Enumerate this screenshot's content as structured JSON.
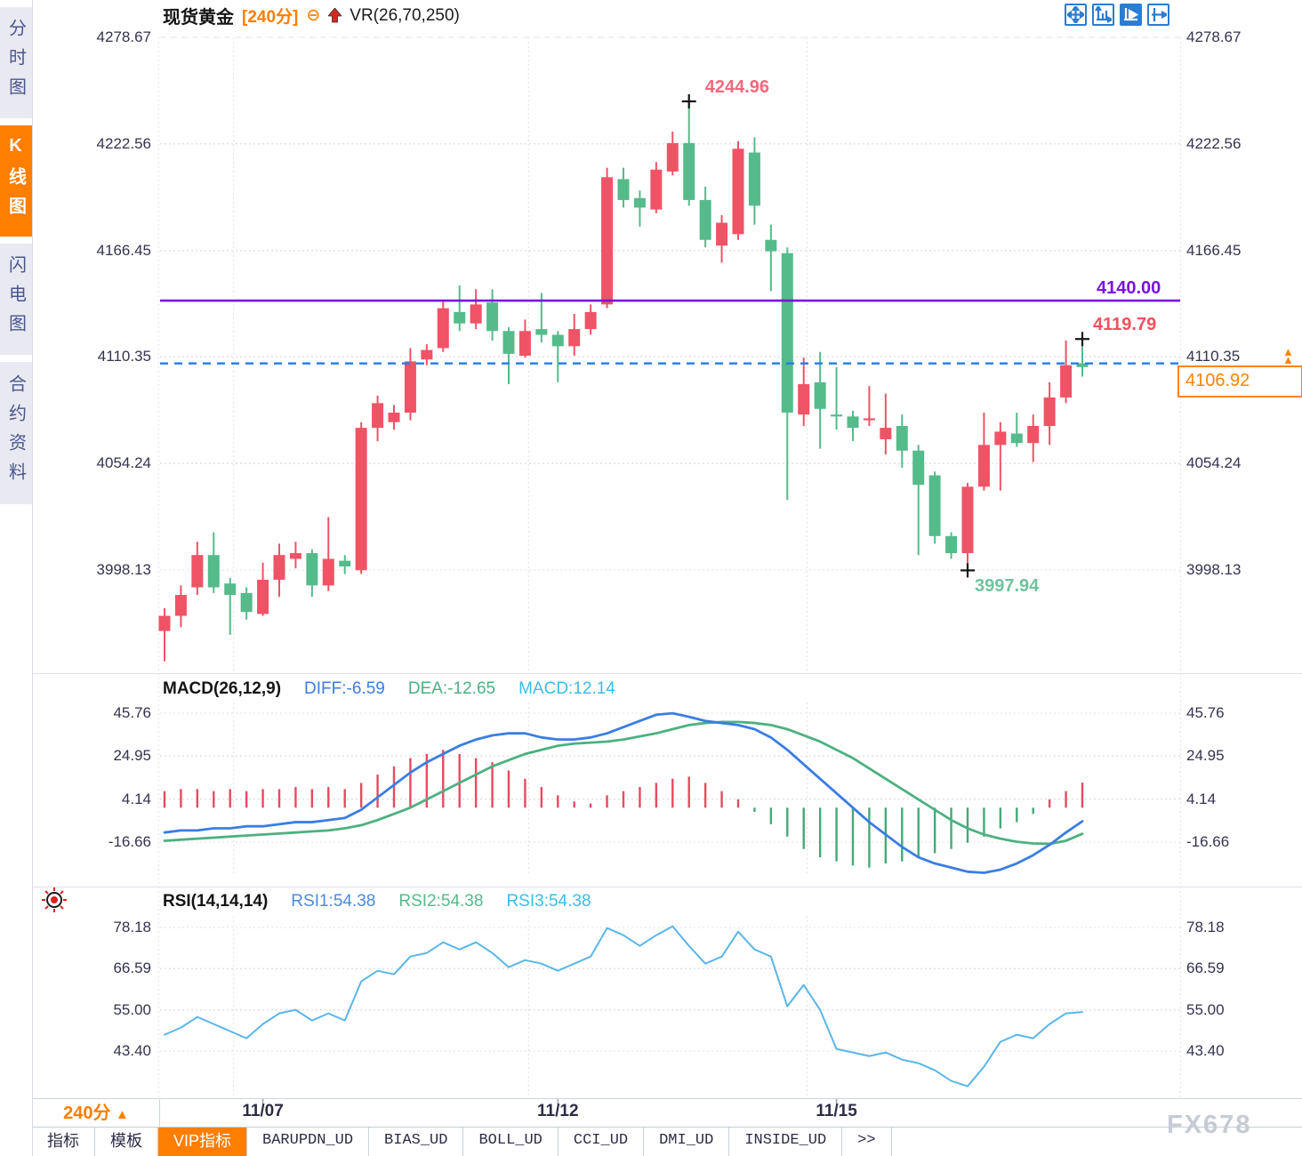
{
  "left_tabs": {
    "items": [
      {
        "label": "分时图",
        "active": false
      },
      {
        "label": "K线图",
        "active": true
      },
      {
        "label": "闪电图",
        "active": false
      },
      {
        "label": "合约资料",
        "active": false
      }
    ]
  },
  "header": {
    "symbol": "现货黄金",
    "period": "[240分]",
    "minus_icon": "⊖",
    "vr_label": "VR(26,70,250)"
  },
  "toolbar": {
    "icons": [
      "move-crosshair-icon",
      "axis-scale-icon",
      "axis-play-icon",
      "pan-right-icon"
    ],
    "active_index": 2
  },
  "annotations": {
    "high": "4244.96",
    "low": "3997.94",
    "last_high": "4119.79",
    "hline_label": "4140.00",
    "last_price": "4106.92"
  },
  "macd": {
    "title": "MACD(26,12,9)",
    "diff_label": "DIFF:-6.59",
    "dea_label": "DEA:-12.65",
    "macd_label": "MACD:12.14"
  },
  "rsi": {
    "title": "RSI(14,14,14)",
    "rsi1_label": "RSI1:54.38",
    "rsi2_label": "RSI2:54.38",
    "rsi3_label": "RSI3:54.38"
  },
  "x_axis": {
    "period_button": "240分",
    "period_arrow": "▲"
  },
  "bottom_tabs": {
    "items": [
      "指标",
      "模板",
      "VIP指标",
      "BARUPDN_UD",
      "BIAS_UD",
      "BOLL_UD",
      "CCI_UD",
      "DMI_UD",
      "INSIDE_UD",
      ">>"
    ],
    "active": "VIP指标"
  },
  "watermark": "FX678",
  "colors": {
    "up": "#ef5366",
    "down": "#55bb8a",
    "hist_pos": "#e84a5f",
    "hist_neg": "#46a878",
    "diff_blue": "#3b7de2",
    "dea_green": "#4db080",
    "macd_cyan": "#38bdea",
    "rsi_line": "#5ab6e8",
    "rsi1_blue": "#4a8ae0",
    "rsi2_green": "#55bb8a",
    "rsi3_cyan": "#38bdea",
    "purple_line": "#7c10dc",
    "dashed_blue": "#1f7df5",
    "accent_orange": "#ff7e00",
    "annotation_red": "#f2697c",
    "annotation_green": "#6fc39d",
    "annotation_last": "#f2505f",
    "tick_text": "#333350"
  },
  "chart_data": [
    {
      "type": "candlestick",
      "title": "现货黄金 240分",
      "y_ticks": [
        4278.67,
        4222.56,
        4166.45,
        4110.35,
        4054.24,
        3998.13
      ],
      "x_labels": [
        "11/07",
        "11/12",
        "11/15"
      ],
      "x_label_candle_indices": [
        7,
        25,
        42
      ],
      "hline": {
        "value": 4140.0,
        "style": "solid",
        "color": "#7c10dc"
      },
      "last_price_line": {
        "value": 4106.92,
        "style": "dashed",
        "color": "#1f7df5"
      },
      "annotations": [
        {
          "text": "4244.96",
          "value": 4244.96,
          "candle_index": 33,
          "pos": "above"
        },
        {
          "text": "3997.94",
          "value": 3997.94,
          "candle_index": 50,
          "pos": "below"
        },
        {
          "text": "4119.79",
          "value": 4119.79,
          "candle_index": 57,
          "pos": "above"
        }
      ],
      "candles_ohlc": [
        [
          3966,
          3978,
          3950,
          3974
        ],
        [
          3974,
          3990,
          3968,
          3985
        ],
        [
          3989,
          4013,
          3985,
          4006
        ],
        [
          4006,
          4018,
          3986,
          3989
        ],
        [
          3991,
          3994,
          3964,
          3985
        ],
        [
          3986,
          3989,
          3972,
          3976
        ],
        [
          3975,
          4002,
          3974,
          3993
        ],
        [
          3993,
          4012,
          3984,
          4006
        ],
        [
          4004,
          4013,
          3999,
          4007
        ],
        [
          4007,
          4009,
          3984,
          3990
        ],
        [
          3990,
          4026,
          3987,
          4004
        ],
        [
          4003,
          4006,
          3996,
          4000
        ],
        [
          3998,
          4076,
          3996,
          4073
        ],
        [
          4073,
          4090,
          4066,
          4086
        ],
        [
          4076,
          4085,
          4072,
          4081
        ],
        [
          4081,
          4115,
          4077,
          4108
        ],
        [
          4109,
          4117,
          4106,
          4114
        ],
        [
          4115,
          4140,
          4113,
          4136
        ],
        [
          4134,
          4148,
          4124,
          4128
        ],
        [
          4128,
          4146,
          4125,
          4138
        ],
        [
          4139,
          4146,
          4119,
          4124
        ],
        [
          4124,
          4126,
          4096,
          4112
        ],
        [
          4111,
          4130,
          4110,
          4124
        ],
        [
          4125,
          4144,
          4118,
          4122
        ],
        [
          4122,
          4124,
          4097,
          4116
        ],
        [
          4116,
          4133,
          4111,
          4125
        ],
        [
          4125,
          4138,
          4122,
          4134
        ],
        [
          4138,
          4210,
          4136,
          4205
        ],
        [
          4204,
          4210,
          4189,
          4193
        ],
        [
          4194,
          4198,
          4179,
          4189
        ],
        [
          4188,
          4213,
          4186,
          4209
        ],
        [
          4208,
          4229,
          4206,
          4223
        ],
        [
          4223,
          4245,
          4190,
          4193
        ],
        [
          4193,
          4200,
          4168,
          4172
        ],
        [
          4169,
          4185,
          4160,
          4181
        ],
        [
          4175,
          4224,
          4172,
          4220
        ],
        [
          4218,
          4226,
          4180,
          4190
        ],
        [
          4172,
          4180,
          4145,
          4166
        ],
        [
          4165,
          4168,
          4035,
          4081
        ],
        [
          4080,
          4110,
          4074,
          4096
        ],
        [
          4097,
          4113,
          4062,
          4083
        ],
        [
          4080,
          4105,
          4072,
          4079
        ],
        [
          4079,
          4082,
          4066,
          4073
        ],
        [
          4077,
          4095,
          4074,
          4078
        ],
        [
          4067,
          4091,
          4059,
          4073
        ],
        [
          4074,
          4080,
          4052,
          4061
        ],
        [
          4061,
          4064,
          4006,
          4043
        ],
        [
          4048,
          4050,
          4012,
          4016
        ],
        [
          4016,
          4018,
          4004,
          4007
        ],
        [
          4007,
          4044,
          3998,
          4042
        ],
        [
          4042,
          4081,
          4040,
          4064
        ],
        [
          4064,
          4076,
          4040,
          4071
        ],
        [
          4070,
          4081,
          4063,
          4065
        ],
        [
          4065,
          4080,
          4055,
          4074
        ],
        [
          4074,
          4097,
          4064,
          4089
        ],
        [
          4089,
          4119,
          4086,
          4106
        ],
        [
          4107,
          4120,
          4100,
          4105
        ]
      ]
    },
    {
      "type": "macd",
      "name": "MACD(26,12,9)",
      "values": {
        "diff": -6.59,
        "dea": -12.65,
        "macd": 12.14
      },
      "y_ticks": [
        45.76,
        24.95,
        4.14,
        -16.66
      ],
      "histogram": [
        8,
        9,
        9,
        8,
        9,
        8,
        9,
        9,
        10,
        9,
        10,
        9,
        12,
        16,
        20,
        24,
        26,
        28,
        26,
        24,
        22,
        18,
        14,
        10,
        6,
        3,
        2,
        6,
        8,
        10,
        12,
        14,
        15,
        12,
        8,
        4,
        -2,
        -8,
        -14,
        -20,
        -24,
        -26,
        -28,
        -29,
        -27,
        -26,
        -24,
        -22,
        -20,
        -17,
        -14,
        -10,
        -7,
        -3,
        4,
        8,
        12.14
      ],
      "diff_line": [
        -12,
        -11,
        -11,
        -10,
        -10,
        -9,
        -9,
        -8,
        -7,
        -7,
        -6,
        -5,
        -1,
        5,
        11,
        17,
        22,
        26,
        30,
        33,
        35,
        36,
        36,
        34,
        33,
        33,
        34,
        36,
        39,
        42,
        45,
        45.7,
        44,
        42,
        41,
        40,
        38,
        34,
        28,
        21,
        14,
        7,
        0,
        -7,
        -13,
        -19,
        -24,
        -27,
        -29,
        -31,
        -31.5,
        -30,
        -27,
        -23,
        -18,
        -12,
        -6.59
      ],
      "dea_line": [
        -16,
        -15.5,
        -15,
        -14.5,
        -14,
        -13.5,
        -13,
        -12.5,
        -12,
        -11.5,
        -11,
        -10,
        -8.5,
        -6,
        -3,
        0,
        4,
        8,
        12,
        16,
        20,
        23,
        26,
        28,
        30,
        31,
        31.5,
        32,
        33,
        34.5,
        36,
        38,
        40,
        41,
        41.5,
        41.5,
        41,
        40,
        38,
        35,
        32,
        28,
        24,
        19,
        14,
        9,
        4,
        -1,
        -6,
        -10,
        -13,
        -15,
        -16.5,
        -17.3,
        -17.5,
        -16,
        -12.65
      ]
    },
    {
      "type": "line",
      "name": "RSI(14,14,14)",
      "values": {
        "rsi1": 54.38,
        "rsi2": 54.38,
        "rsi3": 54.38
      },
      "y_ticks": [
        78.18,
        66.59,
        55.0,
        43.4
      ],
      "rsi": [
        48,
        50,
        53,
        51,
        49,
        47,
        51,
        54,
        55,
        52,
        54,
        52,
        63,
        66,
        65,
        70,
        71,
        74,
        72,
        74,
        71,
        67,
        69,
        68,
        66,
        68,
        70,
        78,
        76,
        73,
        76,
        78.5,
        73,
        68,
        70,
        77,
        72,
        70,
        56,
        62,
        55,
        44,
        43,
        42,
        43,
        41,
        40,
        38,
        35,
        33.5,
        39,
        46,
        48,
        47,
        51,
        54,
        54.38
      ]
    }
  ]
}
